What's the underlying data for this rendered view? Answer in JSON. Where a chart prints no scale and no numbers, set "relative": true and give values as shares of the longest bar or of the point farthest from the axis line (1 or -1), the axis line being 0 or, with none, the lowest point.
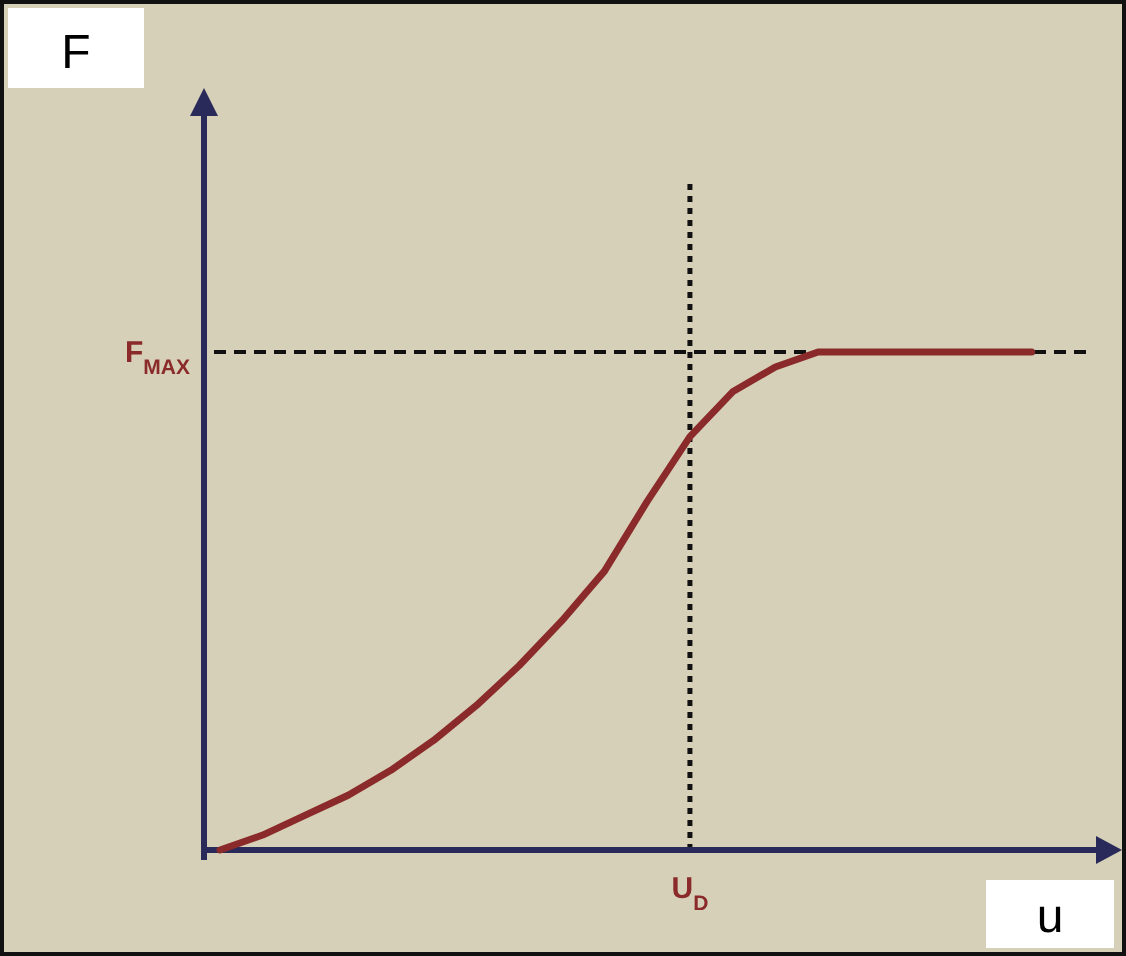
{
  "chart_data": {
    "type": "line",
    "relative": true,
    "annotations": [
      "F",
      "u"
    ],
    "categories": [
      null,
      null,
      null,
      null,
      null,
      null,
      null,
      null,
      null,
      null,
      null,
      null,
      null,
      null,
      null,
      null,
      null,
      null,
      null,
      null
    ],
    "series": [
      {
        "color": "#8b2a2a",
        "values": [
          0,
          0.03,
          0.07,
          0.11,
          0.16,
          0.22,
          0.29,
          0.37,
          0.46,
          0.56,
          0.7,
          0.83,
          0.92,
          0.97,
          1,
          1,
          1,
          1,
          1,
          1
        ]
      }
    ],
    "ref_lines": [
      {
        "axis": "y",
        "value": 1,
        "label": "F$_{MAX}$",
        "line_style": "dashed"
      },
      {
        "axis": "x",
        "label": "U$_{D}$",
        "line_style": "dotted"
      }
    ],
    "marker": "none",
    "line_style": "solid"
  }
}
